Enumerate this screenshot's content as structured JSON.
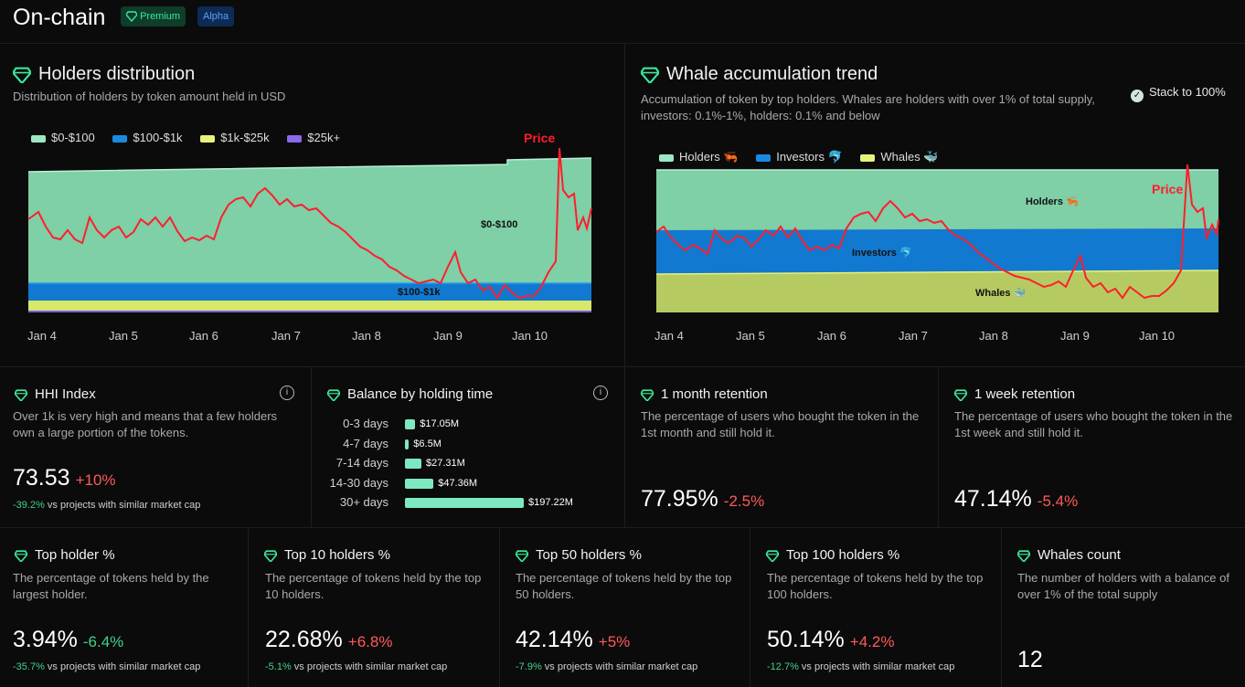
{
  "header": {
    "title": "On-chain",
    "badges": [
      "Premium",
      "Alpha"
    ]
  },
  "holders_distribution": {
    "title": "Holders distribution",
    "subtitle": "Distribution of holders by token amount held in USD",
    "legend": [
      "$0-$100",
      "$100-$1k",
      "$1k-$25k",
      "$25k+"
    ],
    "label_top": "$0-$100",
    "label_band": "$100-$1k",
    "price_label": "Price",
    "x_ticks": [
      "Jan 4",
      "Jan 5",
      "Jan 6",
      "Jan 7",
      "Jan 8",
      "Jan 9",
      "Jan 10"
    ]
  },
  "whale_trend": {
    "title": "Whale accumulation trend",
    "subtitle": "Accumulation of token by top holders. Whales are holders with over 1% of total supply, investors: 0.1%-1%, holders: 0.1% and below",
    "stack_toggle": "Stack to 100%",
    "legend": [
      "Holders 🦐",
      "Investors 🐬",
      "Whales 🐳"
    ],
    "label_holders": "Holders 🦐",
    "label_investors": "Investors 🐬",
    "label_whales": "Whales 🐳",
    "price_label": "Price",
    "x_ticks": [
      "Jan 4",
      "Jan 5",
      "Jan 6",
      "Jan 7",
      "Jan 8",
      "Jan 9",
      "Jan 10"
    ]
  },
  "chart_data": [
    {
      "type": "area",
      "title": "Holders distribution",
      "x": [
        "Jan 4",
        "Jan 5",
        "Jan 6",
        "Jan 7",
        "Jan 8",
        "Jan 9",
        "Jan 10"
      ],
      "series": [
        {
          "name": "$0-$100"
        },
        {
          "name": "$100-$1k"
        },
        {
          "name": "$1k-$25k"
        },
        {
          "name": "$25k+"
        },
        {
          "name": "Price"
        }
      ]
    },
    {
      "type": "area",
      "title": "Whale accumulation trend",
      "x": [
        "Jan 4",
        "Jan 5",
        "Jan 6",
        "Jan 7",
        "Jan 8",
        "Jan 9",
        "Jan 10"
      ],
      "series": [
        {
          "name": "Holders 🦐"
        },
        {
          "name": "Investors 🐬"
        },
        {
          "name": "Whales 🐳"
        },
        {
          "name": "Price"
        }
      ]
    },
    {
      "type": "bar",
      "title": "Balance by holding time",
      "categories": [
        "0-3 days",
        "4-7 days",
        "7-14 days",
        "14-30 days",
        "30+ days"
      ],
      "values": [
        17.05,
        6.5,
        27.31,
        47.36,
        197.22
      ],
      "labels": [
        "$17.05M",
        "$6.5M",
        "$27.31M",
        "$47.36M",
        "$197.22M"
      ]
    }
  ],
  "hhi": {
    "title": "HHI Index",
    "desc": "Over 1k is very high and means that a few holders own a large portion of the tokens.",
    "value": "73.53",
    "change": "+10%",
    "cmp_pct": "-39.2%",
    "cmp_text": " vs projects with similar market cap"
  },
  "balance": {
    "title": "Balance by holding time"
  },
  "retention_month": {
    "title": "1 month retention",
    "desc": "The percentage of users who bought the token in the 1st month and still hold it.",
    "value": "77.95%",
    "change": "-2.5%"
  },
  "retention_week": {
    "title": "1 week retention",
    "desc": "The percentage of users who bought the token in the 1st week and still hold it.",
    "value": "47.14%",
    "change": "-5.4%"
  },
  "top_holder": {
    "title": "Top holder %",
    "desc": "The percentage of tokens held by the largest holder.",
    "value": "3.94%",
    "change": "-6.4%",
    "cmp_pct": "-35.7%",
    "cmp_text": " vs projects with similar market cap"
  },
  "top10": {
    "title": "Top 10 holders %",
    "desc": "The percentage of tokens held by the top 10 holders.",
    "value": "22.68%",
    "change": "+6.8%",
    "cmp_pct": "-5.1%",
    "cmp_text": " vs projects with similar market cap"
  },
  "top50": {
    "title": "Top 50 holders %",
    "desc": "The percentage of tokens held by the top 50 holders.",
    "value": "42.14%",
    "change": "+5%",
    "cmp_pct": "-7.9%",
    "cmp_text": " vs projects with similar market cap"
  },
  "top100": {
    "title": "Top 100 holders %",
    "desc": "The percentage of tokens held by the top 100 holders.",
    "value": "50.14%",
    "change": "+4.2%",
    "cmp_pct": "-12.7%",
    "cmp_text": " vs projects with similar market cap"
  },
  "whales_count": {
    "title": "Whales count",
    "desc": "The number of holders with a balance of over 1% of the total supply",
    "value": "12"
  },
  "colors": {
    "green_area": "#7fcfa7",
    "blue": "#1279d1",
    "yellow": "#d8e86a",
    "purple": "#7b5ae0",
    "price": "#ff1e2d",
    "whale_yellow": "#b5cb61",
    "gem": "#3be89a"
  }
}
